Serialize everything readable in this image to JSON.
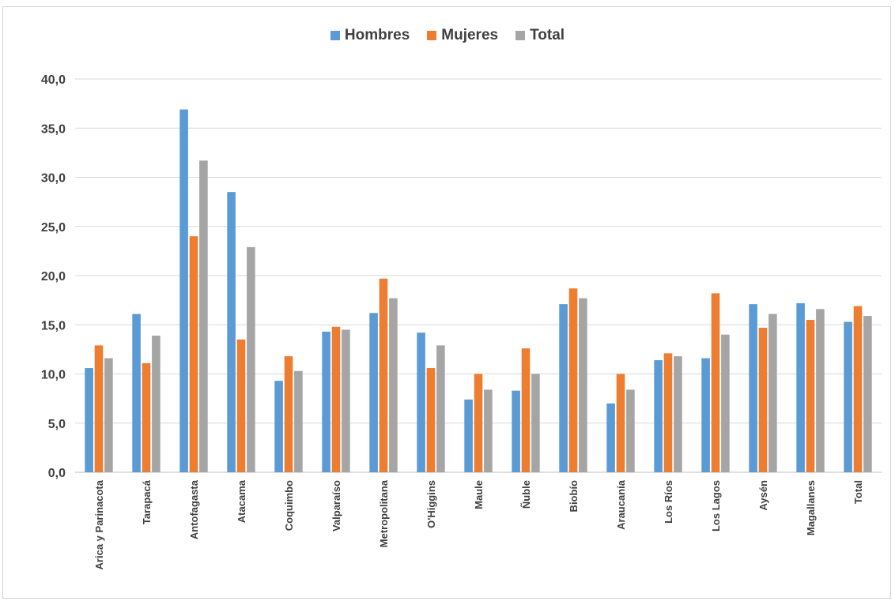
{
  "chart_data": {
    "type": "bar",
    "title": "",
    "xlabel": "",
    "ylabel": "",
    "ylim": [
      0,
      40
    ],
    "yticks": [
      "0,0",
      "5,0",
      "10,0",
      "15,0",
      "20,0",
      "25,0",
      "30,0",
      "35,0",
      "40,0"
    ],
    "grid": true,
    "legend_position": "top-center",
    "categories": [
      "Arica y Parinacota",
      "Tarapacá",
      "Antofagasta",
      "Atacama",
      "Coquimbo",
      "Valparaíso",
      "Metropolitana",
      "O'Higgins",
      "Maule",
      "Ñuble",
      "Biobío",
      "Araucanía",
      "Los Ríos",
      "Los Lagos",
      "Aysén",
      "Magallanes",
      "Total"
    ],
    "series": [
      {
        "name": "Hombres",
        "color": "#5b9bd5",
        "values": [
          10.6,
          16.1,
          36.9,
          28.5,
          9.3,
          14.3,
          16.2,
          14.2,
          7.4,
          8.3,
          17.1,
          7.0,
          11.4,
          11.6,
          17.1,
          17.2,
          15.3
        ]
      },
      {
        "name": "Mujeres",
        "color": "#ed7d31",
        "values": [
          12.9,
          11.1,
          24.0,
          13.5,
          11.8,
          14.8,
          19.7,
          10.6,
          10.0,
          12.6,
          18.7,
          10.0,
          12.1,
          18.2,
          14.7,
          15.5,
          16.9
        ]
      },
      {
        "name": "Total",
        "color": "#a5a5a5",
        "values": [
          11.6,
          13.9,
          31.7,
          22.9,
          10.3,
          14.5,
          17.7,
          12.9,
          8.4,
          10.0,
          17.7,
          8.4,
          11.8,
          14.0,
          16.1,
          16.6,
          15.9
        ]
      }
    ]
  }
}
